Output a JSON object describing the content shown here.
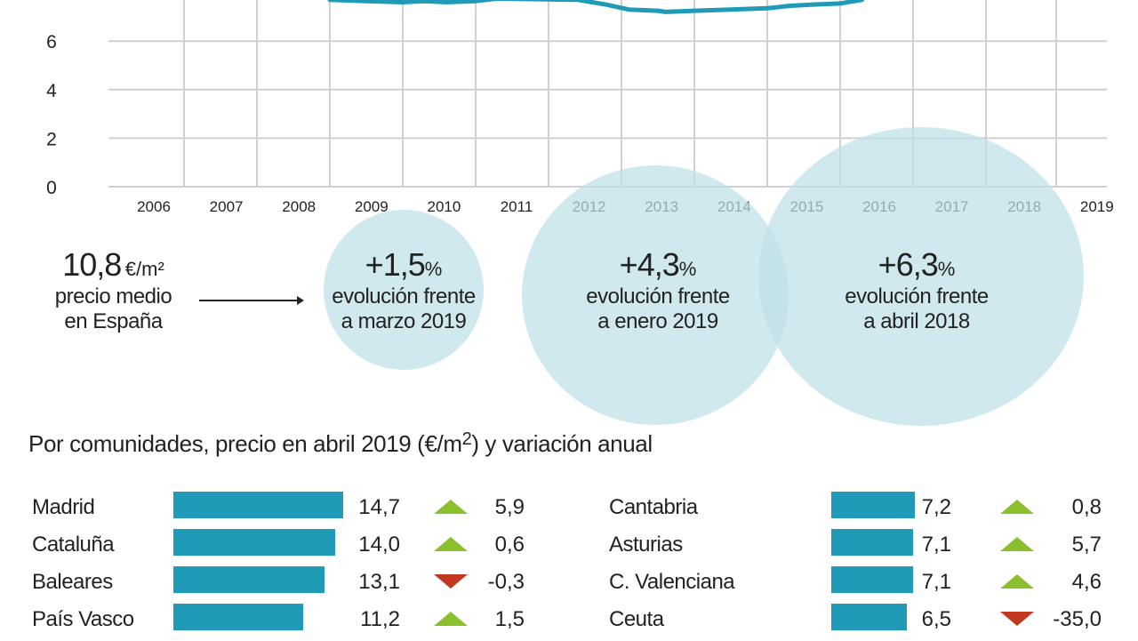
{
  "chart_data": {
    "type": "line",
    "title": "",
    "xlabel": "",
    "ylabel": "",
    "x_ticks": [
      "2006",
      "2007",
      "2008",
      "2009",
      "2010",
      "2011",
      "2012",
      "2013",
      "2014",
      "2015",
      "2016",
      "2017",
      "2018",
      "2019"
    ],
    "y_ticks": [
      "0",
      "2",
      "4",
      "6"
    ],
    "ylim": [
      0,
      8
    ],
    "grid": true,
    "series": [
      {
        "name": "precio medio (€/m²)",
        "color": "#1f9ab7",
        "x": [
          2009.0,
          2009.5,
          2010.0,
          2010.3,
          2010.6,
          2011.0,
          2011.3,
          2012.4,
          2012.8,
          2013.1,
          2013.5,
          2013.6,
          2014.0,
          2014.5,
          2015.0,
          2015.3,
          2015.6,
          2016.0,
          2016.3
        ],
        "y": [
          7.7,
          7.65,
          7.6,
          7.65,
          7.6,
          7.65,
          7.75,
          7.7,
          7.5,
          7.3,
          7.25,
          7.2,
          7.25,
          7.3,
          7.35,
          7.45,
          7.5,
          7.55,
          7.7
        ]
      }
    ]
  },
  "summary": {
    "price": {
      "value": "10,8",
      "unit": "€/m²",
      "label_line1": "precio medio",
      "label_line2": "en España"
    },
    "changes": [
      {
        "value": "+1,5",
        "unit": "%",
        "line1": "evolución frente",
        "line2": "a marzo 2019"
      },
      {
        "value": "+4,3",
        "unit": "%",
        "line1": "evolución frente",
        "line2": "a enero 2019"
      },
      {
        "value": "+6,3",
        "unit": "%",
        "line1": "evolución frente",
        "line2": "a abril 2018"
      }
    ]
  },
  "regions": {
    "title_pre": "Por comunidades, precio en abril 2019 (€/m",
    "title_sup": "2",
    "title_post": ") y variación anual",
    "bar_color": "#1f9ab7",
    "up_color": "#8cbf2d",
    "down_color": "#c0391f",
    "left": [
      {
        "name": "Madrid",
        "price": 14.7,
        "price_label": "14,7",
        "direction": "up",
        "change": "5,9"
      },
      {
        "name": "Cataluña",
        "price": 14.0,
        "price_label": "14,0",
        "direction": "up",
        "change": "0,6"
      },
      {
        "name": "Baleares",
        "price": 13.1,
        "price_label": "13,1",
        "direction": "down",
        "change": "-0,3"
      },
      {
        "name": "País Vasco",
        "price": 11.2,
        "price_label": "11,2",
        "direction": "up",
        "change": "1,5"
      }
    ],
    "right": [
      {
        "name": "Cantabria",
        "price": 7.2,
        "price_label": "7,2",
        "direction": "up",
        "change": "0,8"
      },
      {
        "name": "Asturias",
        "price": 7.1,
        "price_label": "7,1",
        "direction": "up",
        "change": "5,7"
      },
      {
        "name": "C. Valenciana",
        "price": 7.1,
        "price_label": "7,1",
        "direction": "up",
        "change": "4,6"
      },
      {
        "name": "Ceuta",
        "price": 6.5,
        "price_label": "6,5",
        "direction": "down",
        "change": "-35,0"
      }
    ]
  }
}
